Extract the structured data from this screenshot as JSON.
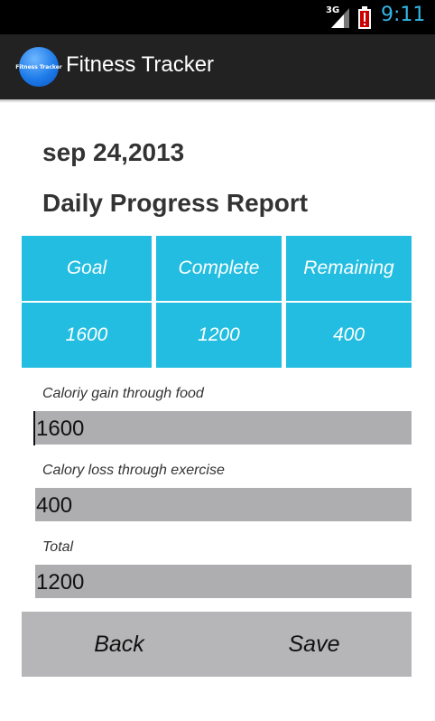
{
  "status_bar": {
    "network": "3G",
    "time": "9:11",
    "signal_icon": "signal-bars-icon",
    "battery_icon": "battery-alert-icon",
    "time_color": "#33b5e5"
  },
  "action_bar": {
    "logo_text": "Fitness Tracker",
    "title": "Fitness Tracker"
  },
  "report": {
    "date": "sep 24,2013",
    "title": "Daily Progress Report"
  },
  "summary": {
    "headers": [
      "Goal",
      "Complete",
      "Remaining"
    ],
    "values": [
      "1600",
      "1200",
      "400"
    ],
    "cell_color": "#22bde0"
  },
  "fields": {
    "calorie_gain": {
      "label": "Caloriy gain through food",
      "value": "1600"
    },
    "calorie_loss": {
      "label": "Calory loss through exercise",
      "value": "400"
    },
    "total": {
      "label": "Total",
      "value": "1200"
    }
  },
  "buttons": {
    "back": "Back",
    "save": "Save"
  }
}
